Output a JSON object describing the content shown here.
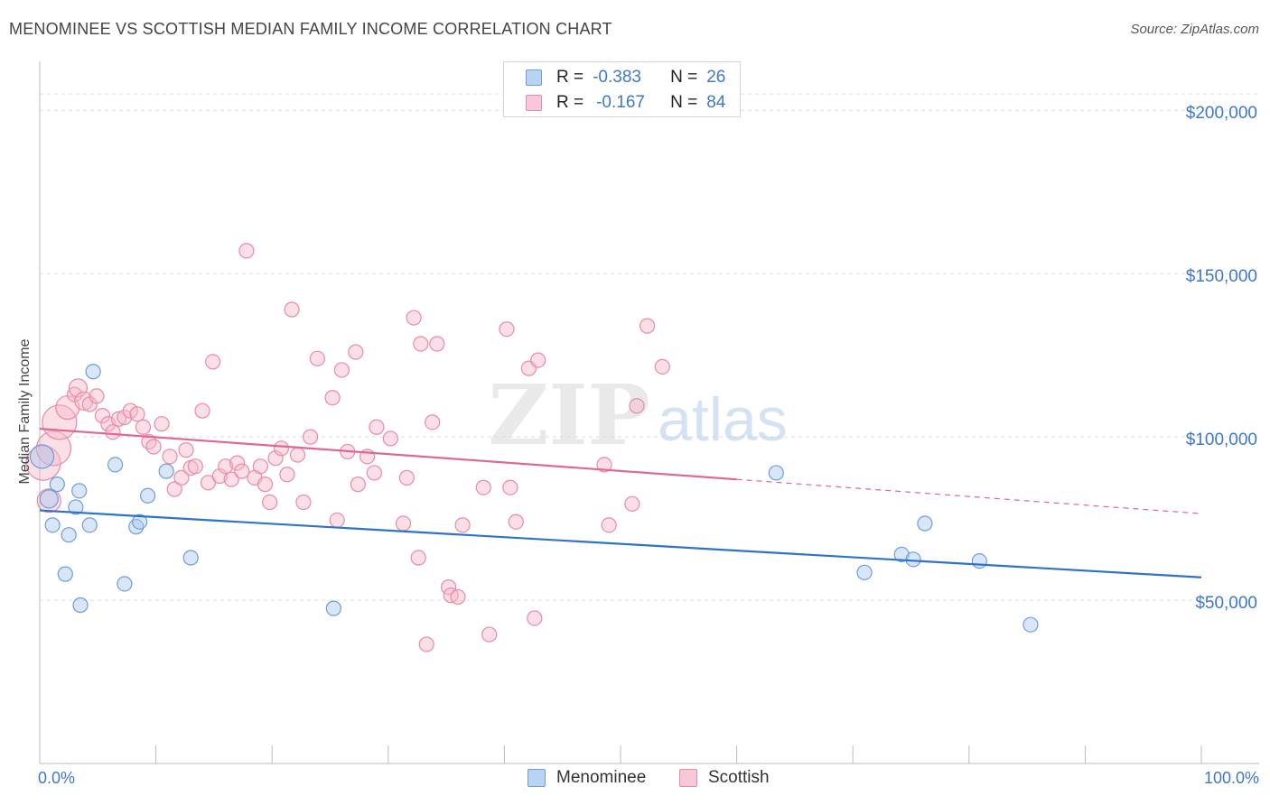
{
  "header": {
    "title": "MENOMINEE VS SCOTTISH MEDIAN FAMILY INCOME CORRELATION CHART",
    "source": "Source: ZipAtlas.com"
  },
  "watermark": {
    "zip": "ZIP",
    "atlas": "atlas"
  },
  "legend": {
    "rows": [
      {
        "r_label": "R =",
        "r_value": "-0.383",
        "n_label": "N =",
        "n_value": "26"
      },
      {
        "r_label": "R =",
        "r_value": "-0.167",
        "n_label": "N =",
        "n_value": "84"
      }
    ]
  },
  "bottom_legend": {
    "menominee": "Menominee",
    "scottish": "Scottish"
  },
  "colors": {
    "menominee_fill": "#a9c7ef",
    "menominee_stroke": "#6d9fd8",
    "menominee_line": "#2e72cc",
    "scottish_fill": "#f6b7c9",
    "scottish_stroke": "#e98aa8",
    "scottish_line": "#e26790",
    "tick_text": "#3f78c8",
    "grid": "#dddddd"
  },
  "chart_data": {
    "type": "scatter",
    "title": "MENOMINEE VS SCOTTISH MEDIAN FAMILY INCOME CORRELATION CHART",
    "xlabel": "",
    "ylabel": "Median Family Income",
    "xlim": [
      0,
      100
    ],
    "ylim": [
      0,
      215000
    ],
    "x_tick_labels": [
      "0.0%",
      "100.0%"
    ],
    "y_ticks": [
      {
        "value": 50000,
        "label": "$50,000"
      },
      {
        "value": 100000,
        "label": "$100,000"
      },
      {
        "value": 150000,
        "label": "$150,000"
      },
      {
        "value": 200000,
        "label": "$200,000"
      }
    ],
    "series": [
      {
        "name": "Menominee",
        "r": -0.383,
        "n": 26,
        "trend": {
          "x0": 0,
          "y0": 77500,
          "x1": 100,
          "y1": 57000
        },
        "points": [
          {
            "x": 0.2,
            "y": 94000,
            "s": "l"
          },
          {
            "x": 0.8,
            "y": 81000,
            "s": "m"
          },
          {
            "x": 1.1,
            "y": 73000,
            "s": "s"
          },
          {
            "x": 1.5,
            "y": 85500,
            "s": "s"
          },
          {
            "x": 2.2,
            "y": 58000,
            "s": "s"
          },
          {
            "x": 2.5,
            "y": 70000,
            "s": "s"
          },
          {
            "x": 3.1,
            "y": 78500,
            "s": "s"
          },
          {
            "x": 3.4,
            "y": 83500,
            "s": "s"
          },
          {
            "x": 3.5,
            "y": 48500,
            "s": "s"
          },
          {
            "x": 4.3,
            "y": 73000,
            "s": "s"
          },
          {
            "x": 4.6,
            "y": 120000,
            "s": "s"
          },
          {
            "x": 6.5,
            "y": 91500,
            "s": "s"
          },
          {
            "x": 7.3,
            "y": 55000,
            "s": "s"
          },
          {
            "x": 8.3,
            "y": 72500,
            "s": "s"
          },
          {
            "x": 8.6,
            "y": 74000,
            "s": "s"
          },
          {
            "x": 9.3,
            "y": 82000,
            "s": "s"
          },
          {
            "x": 10.9,
            "y": 89500,
            "s": "s"
          },
          {
            "x": 13.0,
            "y": 63000,
            "s": "s"
          },
          {
            "x": 25.3,
            "y": 47500,
            "s": "s"
          },
          {
            "x": 63.4,
            "y": 89000,
            "s": "s"
          },
          {
            "x": 71.0,
            "y": 58500,
            "s": "s"
          },
          {
            "x": 74.2,
            "y": 64000,
            "s": "s"
          },
          {
            "x": 75.2,
            "y": 62500,
            "s": "s"
          },
          {
            "x": 76.2,
            "y": 73500,
            "s": "s"
          },
          {
            "x": 80.9,
            "y": 62000,
            "s": "s"
          },
          {
            "x": 85.3,
            "y": 42500,
            "s": "s"
          }
        ]
      },
      {
        "name": "Scottish",
        "r": -0.167,
        "n": 84,
        "trend": {
          "x0": 0,
          "y0": 102500,
          "x1": 60,
          "y1": 87000,
          "dash_x1": 100,
          "dash_y1": 76500
        },
        "points": [
          {
            "x": 0.3,
            "y": 92000,
            "s": "xl"
          },
          {
            "x": 0.8,
            "y": 80500,
            "s": "l"
          },
          {
            "x": 1.2,
            "y": 96500,
            "s": "xl"
          },
          {
            "x": 1.7,
            "y": 104500,
            "s": "xl"
          },
          {
            "x": 2.4,
            "y": 109000,
            "s": "l"
          },
          {
            "x": 3.0,
            "y": 113000,
            "s": "s"
          },
          {
            "x": 3.3,
            "y": 115000,
            "s": "m"
          },
          {
            "x": 3.8,
            "y": 111000,
            "s": "m"
          },
          {
            "x": 4.3,
            "y": 110000,
            "s": "s"
          },
          {
            "x": 4.9,
            "y": 112500,
            "s": "s"
          },
          {
            "x": 5.4,
            "y": 106500,
            "s": "s"
          },
          {
            "x": 5.9,
            "y": 104000,
            "s": "s"
          },
          {
            "x": 6.3,
            "y": 101500,
            "s": "s"
          },
          {
            "x": 6.8,
            "y": 105500,
            "s": "s"
          },
          {
            "x": 7.3,
            "y": 106000,
            "s": "s"
          },
          {
            "x": 7.8,
            "y": 108000,
            "s": "s"
          },
          {
            "x": 8.4,
            "y": 107000,
            "s": "s"
          },
          {
            "x": 8.9,
            "y": 103000,
            "s": "s"
          },
          {
            "x": 9.4,
            "y": 98500,
            "s": "s"
          },
          {
            "x": 9.8,
            "y": 97000,
            "s": "s"
          },
          {
            "x": 10.5,
            "y": 104000,
            "s": "s"
          },
          {
            "x": 11.2,
            "y": 94000,
            "s": "s"
          },
          {
            "x": 11.6,
            "y": 84000,
            "s": "s"
          },
          {
            "x": 12.2,
            "y": 87500,
            "s": "s"
          },
          {
            "x": 12.6,
            "y": 96000,
            "s": "s"
          },
          {
            "x": 13.0,
            "y": 90500,
            "s": "s"
          },
          {
            "x": 13.4,
            "y": 91000,
            "s": "s"
          },
          {
            "x": 14.0,
            "y": 108000,
            "s": "s"
          },
          {
            "x": 14.5,
            "y": 86000,
            "s": "s"
          },
          {
            "x": 14.9,
            "y": 123000,
            "s": "s"
          },
          {
            "x": 15.5,
            "y": 88000,
            "s": "s"
          },
          {
            "x": 16.0,
            "y": 91000,
            "s": "s"
          },
          {
            "x": 16.5,
            "y": 87000,
            "s": "s"
          },
          {
            "x": 17.0,
            "y": 92000,
            "s": "s"
          },
          {
            "x": 17.4,
            "y": 89500,
            "s": "s"
          },
          {
            "x": 17.8,
            "y": 157000,
            "s": "s"
          },
          {
            "x": 18.5,
            "y": 87500,
            "s": "s"
          },
          {
            "x": 19.0,
            "y": 91000,
            "s": "s"
          },
          {
            "x": 19.4,
            "y": 85500,
            "s": "s"
          },
          {
            "x": 19.8,
            "y": 80000,
            "s": "s"
          },
          {
            "x": 20.3,
            "y": 93500,
            "s": "s"
          },
          {
            "x": 20.8,
            "y": 96500,
            "s": "s"
          },
          {
            "x": 21.3,
            "y": 88500,
            "s": "s"
          },
          {
            "x": 21.7,
            "y": 139000,
            "s": "s"
          },
          {
            "x": 22.2,
            "y": 94500,
            "s": "s"
          },
          {
            "x": 22.7,
            "y": 80000,
            "s": "s"
          },
          {
            "x": 23.3,
            "y": 100000,
            "s": "s"
          },
          {
            "x": 23.9,
            "y": 124000,
            "s": "s"
          },
          {
            "x": 25.2,
            "y": 112000,
            "s": "s"
          },
          {
            "x": 25.6,
            "y": 74500,
            "s": "s"
          },
          {
            "x": 26.0,
            "y": 120500,
            "s": "s"
          },
          {
            "x": 26.5,
            "y": 95500,
            "s": "s"
          },
          {
            "x": 27.2,
            "y": 126000,
            "s": "s"
          },
          {
            "x": 27.4,
            "y": 85500,
            "s": "s"
          },
          {
            "x": 28.2,
            "y": 94000,
            "s": "s"
          },
          {
            "x": 28.8,
            "y": 89000,
            "s": "s"
          },
          {
            "x": 29.0,
            "y": 103000,
            "s": "s"
          },
          {
            "x": 30.2,
            "y": 99500,
            "s": "s"
          },
          {
            "x": 31.3,
            "y": 73500,
            "s": "s"
          },
          {
            "x": 31.6,
            "y": 87500,
            "s": "s"
          },
          {
            "x": 32.2,
            "y": 136500,
            "s": "s"
          },
          {
            "x": 32.6,
            "y": 63000,
            "s": "s"
          },
          {
            "x": 32.8,
            "y": 128500,
            "s": "s"
          },
          {
            "x": 33.3,
            "y": 36500,
            "s": "s"
          },
          {
            "x": 33.8,
            "y": 104500,
            "s": "s"
          },
          {
            "x": 34.2,
            "y": 128500,
            "s": "s"
          },
          {
            "x": 35.2,
            "y": 54000,
            "s": "s"
          },
          {
            "x": 35.4,
            "y": 51500,
            "s": "s"
          },
          {
            "x": 36.0,
            "y": 51000,
            "s": "s"
          },
          {
            "x": 36.4,
            "y": 73000,
            "s": "s"
          },
          {
            "x": 38.2,
            "y": 84500,
            "s": "s"
          },
          {
            "x": 38.7,
            "y": 39500,
            "s": "s"
          },
          {
            "x": 40.2,
            "y": 133000,
            "s": "s"
          },
          {
            "x": 40.5,
            "y": 84500,
            "s": "s"
          },
          {
            "x": 41.0,
            "y": 74000,
            "s": "s"
          },
          {
            "x": 42.1,
            "y": 121000,
            "s": "s"
          },
          {
            "x": 42.6,
            "y": 44500,
            "s": "s"
          },
          {
            "x": 42.9,
            "y": 123500,
            "s": "s"
          },
          {
            "x": 48.6,
            "y": 91500,
            "s": "s"
          },
          {
            "x": 49.0,
            "y": 73000,
            "s": "s"
          },
          {
            "x": 51.0,
            "y": 79500,
            "s": "s"
          },
          {
            "x": 51.4,
            "y": 109500,
            "s": "s"
          },
          {
            "x": 52.3,
            "y": 134000,
            "s": "s"
          },
          {
            "x": 53.6,
            "y": 121500,
            "s": "s"
          }
        ]
      }
    ]
  }
}
